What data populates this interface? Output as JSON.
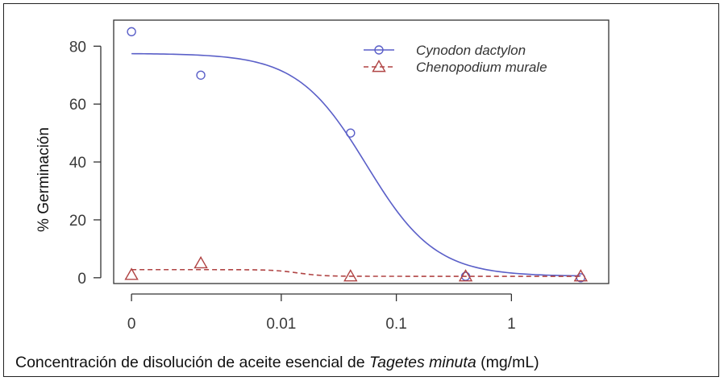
{
  "chart_data": {
    "type": "line",
    "ylabel": "% Germinación",
    "xlabel_parts": {
      "before": "Concentración de disolución de aceite esencial de ",
      "italic": "Tagetes minuta",
      "after": " (mg/mL)"
    },
    "x_ticks": [
      {
        "label": "0",
        "value": 0.0005
      },
      {
        "label": "0.01",
        "value": 0.01
      },
      {
        "label": "0.1",
        "value": 0.1
      },
      {
        "label": "1",
        "value": 1
      }
    ],
    "y_ticks": [
      0,
      20,
      40,
      60,
      80
    ],
    "ylim": [
      -2,
      89
    ],
    "xlim": [
      0.00035,
      7
    ],
    "x_scale": "log",
    "legend_position": "top-right",
    "series": [
      {
        "name": "Cynodon dactylon",
        "color": "#5a5fc8",
        "marker": "circle",
        "line": "solid",
        "points": [
          {
            "x": 0.0005,
            "y": 85
          },
          {
            "x": 0.002,
            "y": 70
          },
          {
            "x": 0.04,
            "y": 50
          },
          {
            "x": 0.4,
            "y": 0.5
          },
          {
            "x": 4,
            "y": 0
          }
        ],
        "fit": {
          "top": 77.5,
          "bottom": 0.5,
          "ec50": 0.055,
          "hill": 1.45
        }
      },
      {
        "name": "Chenopodium murale",
        "color": "#b04444",
        "marker": "triangle",
        "line": "dashed",
        "points": [
          {
            "x": 0.0005,
            "y": 1
          },
          {
            "x": 0.002,
            "y": 5
          },
          {
            "x": 0.04,
            "y": 0.5
          },
          {
            "x": 0.4,
            "y": 0.5
          },
          {
            "x": 4,
            "y": 0.5
          }
        ],
        "fit": {
          "top": 2.8,
          "bottom": 0.5,
          "ec50": 0.014,
          "hill": 4
        }
      }
    ]
  }
}
